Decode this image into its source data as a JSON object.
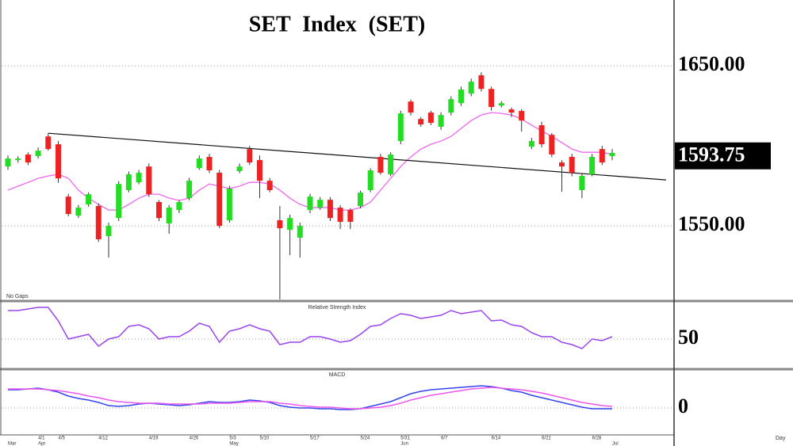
{
  "chart_data": [
    {
      "type": "candlestick",
      "title": "SET Index (SET)",
      "note": "No Gaps",
      "categories": [
        null,
        null,
        null,
        "4/1",
        null,
        "4/5",
        null,
        null,
        null,
        "4/12",
        null,
        null,
        null,
        null,
        "4/19",
        null,
        null,
        null,
        "4/26",
        null,
        null,
        null,
        "5/3",
        null,
        null,
        "5/10",
        null,
        null,
        null,
        null,
        "5/17",
        null,
        null,
        null,
        null,
        "5/24",
        null,
        null,
        null,
        "5/31",
        null,
        null,
        null,
        "6/7",
        null,
        null,
        null,
        null,
        "6/14",
        null,
        null,
        null,
        null,
        "6/21",
        null,
        null,
        null,
        null,
        "6/28",
        null,
        null
      ],
      "month_labels": [
        "Mar",
        null,
        null,
        "Apr",
        null,
        null,
        null,
        null,
        null,
        null,
        null,
        null,
        null,
        null,
        null,
        null,
        null,
        null,
        null,
        null,
        null,
        null,
        "May",
        null,
        null,
        null,
        null,
        null,
        null,
        null,
        null,
        null,
        null,
        null,
        null,
        null,
        null,
        null,
        null,
        "Jun",
        null,
        null,
        null,
        null,
        null,
        null,
        null,
        null,
        null,
        null,
        null,
        null,
        null,
        null,
        null,
        null,
        null,
        null,
        null,
        null,
        "Jul"
      ],
      "open": [
        1587.1,
        1591.1,
        1594.6,
        1593.6,
        1605.9,
        1601,
        1568.3,
        1556.4,
        1563.4,
        1562.4,
        1543.6,
        1554.9,
        1572.3,
        1577.2,
        1587.1,
        1564.9,
        1551.5,
        1559.9,
        1567.3,
        1586.1,
        1593.1,
        1583.2,
        1553.5,
        1584.2,
        1598,
        1591.1,
        1578.2,
        1553.5,
        1547.5,
        1542.6,
        1559.9,
        1561.4,
        1566.3,
        1561.4,
        1559.9,
        1562.4,
        1572.3,
        1593.1,
        1582.2,
        1603,
        1627.7,
        1616.8,
        1620.8,
        1611.9,
        1620.8,
        1626.7,
        1632.7,
        1644.1,
        1635.6,
        1625.2,
        1622.8,
        1621.8,
        1599.5,
        1612.9,
        1606.9,
        1589.6,
        1593.1,
        1572.3,
        1582.2,
        1598,
        1593.6
      ],
      "high": [
        1594,
        1593.5,
        1596,
        1599,
        1607.9,
        1603,
        1570,
        1563,
        1571,
        1564,
        1552,
        1578,
        1584,
        1585,
        1589,
        1566,
        1563,
        1566,
        1580,
        1594,
        1595,
        1585,
        1575,
        1589,
        1600,
        1594,
        1580,
        1562.4,
        1557,
        1552,
        1570,
        1568,
        1568,
        1563,
        1561,
        1572,
        1586,
        1595,
        1596,
        1622,
        1629,
        1618,
        1622,
        1621,
        1631,
        1637,
        1642,
        1646,
        1637,
        1628,
        1624,
        1623,
        1605,
        1615,
        1608,
        1591,
        1595,
        1583,
        1595,
        1600,
        1598
      ],
      "low": [
        1585,
        1589.5,
        1588,
        1592,
        1597,
        1577,
        1556,
        1555,
        1562,
        1540,
        1530.2,
        1553,
        1571,
        1576,
        1568,
        1553,
        1545,
        1558,
        1566,
        1585,
        1583,
        1548.5,
        1552,
        1583,
        1588,
        1567.3,
        1571,
        1504,
        1531.7,
        1530.2,
        1558,
        1560,
        1553,
        1548,
        1548,
        1561,
        1571,
        1582,
        1581,
        1601,
        1619,
        1612,
        1613,
        1610,
        1619,
        1625,
        1631,
        1634,
        1622,
        1624,
        1618,
        1609,
        1598,
        1599,
        1593,
        1571.3,
        1581,
        1567.3,
        1581,
        1588,
        1591
      ],
      "close": [
        1592.1,
        1592.1,
        1589.6,
        1597,
        1598,
        1579.7,
        1557.4,
        1561.4,
        1569.8,
        1541.6,
        1550,
        1576.2,
        1582.2,
        1583.2,
        1569.8,
        1554.9,
        1561.4,
        1564.9,
        1578.2,
        1592.1,
        1584.7,
        1550,
        1573.3,
        1587.1,
        1589.6,
        1578.2,
        1572.3,
        1548.5,
        1554.9,
        1550,
        1568.3,
        1566.3,
        1554.9,
        1552.5,
        1552.5,
        1570.8,
        1584.7,
        1583.2,
        1594.6,
        1620.3,
        1620.8,
        1613.4,
        1614.4,
        1619.3,
        1629.2,
        1635.2,
        1640.1,
        1635.6,
        1624.3,
        1626.7,
        1620.8,
        1615.8,
        1603,
        1601,
        1594.6,
        1587.1,
        1583.2,
        1581.2,
        1593.1,
        1589.6,
        1595.6
      ],
      "up_color": "#22dd22",
      "down_color": "#ee2222",
      "moving_average": {
        "color": "#ee66ee",
        "values": [
          1572.3,
          1574.8,
          1577.2,
          1579.7,
          1581.2,
          1582.2,
          1579.7,
          1572.3,
          1567.3,
          1563.4,
          1559.9,
          1559.9,
          1563.4,
          1567.3,
          1569.8,
          1569.8,
          1567.3,
          1565.9,
          1567.3,
          1572.3,
          1576.2,
          1574.8,
          1573.3,
          1574.8,
          1577.2,
          1577.2,
          1576.2,
          1572.3,
          1567.3,
          1563.4,
          1561.4,
          1561.4,
          1561.4,
          1559.9,
          1559.9,
          1561.4,
          1564.9,
          1572.3,
          1579.7,
          1587.1,
          1593.1,
          1598,
          1601,
          1603,
          1605.9,
          1610.9,
          1615.8,
          1619.3,
          1620.8,
          1620.3,
          1619.3,
          1616.8,
          1612.9,
          1609.4,
          1605.9,
          1602,
          1598,
          1596,
          1596,
          1596,
          1594.6
        ]
      },
      "trendline": {
        "color": "#111111",
        "values": [
          1607.9,
          1578.7
        ]
      },
      "last_price": 1593.75,
      "ylim": [
        1504,
        1688.7
      ],
      "yticks": [
        {
          "value": 1550,
          "label": "1550.00"
        },
        {
          "value": 1650,
          "label": "1650.00"
        }
      ]
    },
    {
      "type": "line",
      "title": "Relative Strength Index",
      "series": [
        {
          "color": "#9944ee",
          "values": [
            86,
            86,
            88,
            90,
            90,
            73,
            50,
            53,
            56,
            41,
            50,
            53,
            66,
            68,
            63,
            50,
            53,
            53,
            60,
            70,
            66,
            46,
            60,
            63,
            68,
            63,
            60,
            43,
            46,
            46,
            53,
            53,
            50,
            46,
            48,
            56,
            66,
            68,
            76,
            82,
            80,
            76,
            78,
            80,
            86,
            82,
            84,
            86,
            73,
            74,
            68,
            66,
            58,
            53,
            53,
            46,
            43,
            38,
            50,
            48,
            53
          ]
        }
      ],
      "ylim": [
        13,
        95
      ],
      "yticks": [
        50
      ]
    },
    {
      "type": "line",
      "title": "MACD",
      "x_label": "Day",
      "series": [
        {
          "color": "#3344ee",
          "values": [
            23,
            23,
            24,
            25,
            23,
            20,
            15,
            12,
            10,
            7,
            3,
            2,
            3,
            5,
            6,
            5,
            4,
            3,
            4,
            6,
            8,
            7,
            7,
            8,
            10,
            9,
            7,
            3,
            1,
            0,
            0,
            -1,
            -1,
            -2,
            -2,
            -1,
            2,
            5,
            8,
            13,
            18,
            21,
            23,
            24,
            25,
            26,
            27,
            28,
            27,
            25,
            22,
            20,
            16,
            13,
            10,
            7,
            4,
            1,
            -1,
            -1,
            -1
          ]
        },
        {
          "color": "#ee55ee",
          "values": [
            24,
            24,
            24,
            24,
            23,
            22,
            20,
            18,
            15,
            13,
            10,
            8,
            7,
            6,
            6,
            6,
            5,
            5,
            5,
            5,
            6,
            6,
            6,
            7,
            8,
            8,
            8,
            6,
            5,
            3,
            2,
            1,
            1,
            0,
            -1,
            -1,
            0,
            1,
            3,
            6,
            10,
            13,
            16,
            18,
            20,
            22,
            24,
            25,
            26,
            25,
            24,
            23,
            21,
            19,
            16,
            13,
            10,
            7,
            5,
            3,
            2
          ]
        }
      ],
      "ylim": [
        -33,
        47
      ],
      "yticks": [
        0
      ]
    }
  ]
}
